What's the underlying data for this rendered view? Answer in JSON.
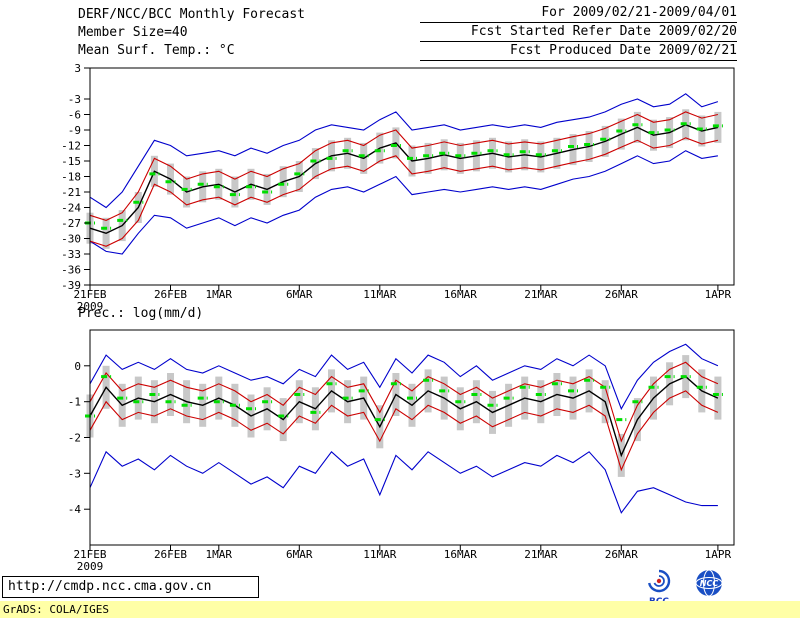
{
  "header": {
    "title": "DERF/NCC/BCC Monthly Forecast",
    "member_size": "Member Size=40",
    "for_range": "For 2009/02/21-2009/04/01",
    "fcst_started": "Fcst Started Refer Date 2009/02/20",
    "fcst_produced": "Fcst Produced Date 2009/02/21"
  },
  "labels": {
    "temp_panel": "Mean Surf. Temp.: °C",
    "prec_panel": "Prec.: log(mm/d)"
  },
  "footer": {
    "url": "http://cmdp.ncc.cma.gov.cn",
    "grads_credit": "GrADS: COLA/IGES",
    "bcc_logo": "BCC",
    "ncc_logo": "NCC"
  },
  "colors": {
    "ensemble_mean": "#000000",
    "spread_lines": "#cc0000",
    "extreme_lines": "#0000cc",
    "obs_dashes": "#00dd00",
    "spread_bars": "#c8c8c8",
    "stamp_bg": "#ffffa6"
  },
  "chart_data": [
    {
      "type": "line",
      "name": "surface-temperature-panel",
      "title": "Mean Surf. Temp.: °C",
      "ylabel": "°C",
      "ylim": [
        -39,
        3
      ],
      "yticks": [
        3,
        -3,
        -6,
        -9,
        -12,
        -15,
        -18,
        -21,
        -24,
        -27,
        -30,
        -33,
        -36,
        -39
      ],
      "n_days": 40,
      "year_label": "2009",
      "grid": false,
      "legend": false,
      "x_ticks": [
        {
          "day": 0,
          "label": "21FEB"
        },
        {
          "day": 5,
          "label": "26FEB"
        },
        {
          "day": 8,
          "label": "1MAR"
        },
        {
          "day": 13,
          "label": "6MAR"
        },
        {
          "day": 18,
          "label": "11MAR"
        },
        {
          "day": 23,
          "label": "16MAR"
        },
        {
          "day": 28,
          "label": "21MAR"
        },
        {
          "day": 33,
          "label": "26MAR"
        },
        {
          "day": 39,
          "label": "1APR"
        }
      ],
      "series": [
        {
          "name": "ensemble-max",
          "color": "#0000cc",
          "values": [
            -22,
            -24,
            -21,
            -16,
            -11,
            -12,
            -14,
            -13.5,
            -13,
            -14,
            -12.5,
            -13.5,
            -12,
            -11,
            -9,
            -8,
            -8.5,
            -9,
            -7,
            -5.5,
            -9,
            -8.5,
            -8,
            -9,
            -8.5,
            -8,
            -8.5,
            -8,
            -8.5,
            -7.5,
            -7,
            -6.5,
            -5.5,
            -4,
            -3,
            -4.5,
            -4,
            -2,
            -4.5,
            -3.5
          ]
        },
        {
          "name": "ensemble-min",
          "color": "#0000cc",
          "values": [
            -30.5,
            -32.5,
            -33,
            -29,
            -25.5,
            -26,
            -28,
            -27,
            -26,
            -27.5,
            -26,
            -27,
            -25.5,
            -24.5,
            -22,
            -20.5,
            -20,
            -21,
            -19.5,
            -18,
            -21.5,
            -21,
            -20.5,
            -21,
            -20.5,
            -20,
            -20.5,
            -20,
            -20.5,
            -19.5,
            -18.5,
            -18,
            -17,
            -15.5,
            -14,
            -15.5,
            -15,
            -13,
            -14.5,
            -14
          ]
        },
        {
          "name": "spread-upper",
          "color": "#cc0000",
          "values": [
            -25.5,
            -26.5,
            -25,
            -21,
            -14.5,
            -16,
            -18.5,
            -17.5,
            -17,
            -18.5,
            -17,
            -18,
            -16.5,
            -15.5,
            -13,
            -11.5,
            -11,
            -12,
            -10,
            -9,
            -12.5,
            -12,
            -11.3,
            -12,
            -11.5,
            -11,
            -11.7,
            -11.3,
            -11.7,
            -11,
            -10.3,
            -9.7,
            -8.7,
            -7.3,
            -6,
            -7.5,
            -7,
            -5.5,
            -6.7,
            -6
          ]
        },
        {
          "name": "spread-lower",
          "color": "#cc0000",
          "values": [
            -30.5,
            -31.5,
            -30,
            -26.5,
            -19.5,
            -21,
            -23.5,
            -22.5,
            -22,
            -23.5,
            -22,
            -23,
            -21.5,
            -20.5,
            -18,
            -16.5,
            -16,
            -17,
            -15,
            -14,
            -17.5,
            -17,
            -16.3,
            -17,
            -16.5,
            -16,
            -16.7,
            -16.3,
            -16.7,
            -16,
            -15.3,
            -14.7,
            -13.7,
            -12.3,
            -11,
            -12.5,
            -12,
            -10.5,
            -11.7,
            -11
          ]
        },
        {
          "name": "ensemble-mean",
          "color": "#000000",
          "values": [
            -28,
            -29,
            -27.5,
            -24,
            -17,
            -18.5,
            -21,
            -20,
            -19.5,
            -21,
            -19.5,
            -20.5,
            -19,
            -18,
            -15.5,
            -14,
            -13.5,
            -14.5,
            -12.5,
            -11.5,
            -15,
            -14.5,
            -13.8,
            -14.5,
            -14,
            -13.5,
            -14.2,
            -13.8,
            -14.2,
            -13.5,
            -12.8,
            -12.2,
            -11.2,
            -9.8,
            -8.5,
            -10,
            -9.5,
            -8,
            -9.2,
            -8.5
          ]
        }
      ],
      "spread_bars": {
        "color": "#c8c8c8",
        "top": [
          -25,
          -26,
          -24.5,
          -21,
          -14,
          -15.5,
          -18,
          -17,
          -16.5,
          -18,
          -16.5,
          -17.5,
          -16,
          -15,
          -12.5,
          -11,
          -10.5,
          -11.5,
          -9.5,
          -8.5,
          -12,
          -11.5,
          -10.8,
          -11.5,
          -11,
          -10.5,
          -11.2,
          -10.8,
          -11.2,
          -10.5,
          -9.8,
          -9.2,
          -8.2,
          -6.8,
          -5.5,
          -7,
          -6.5,
          -5,
          -6.2,
          -5.5
        ],
        "bottom": [
          -31,
          -32,
          -30.5,
          -27,
          -20,
          -21.5,
          -24,
          -23,
          -22.5,
          -24,
          -22.5,
          -23.5,
          -22,
          -21,
          -18.5,
          -17,
          -16.5,
          -17.5,
          -15.5,
          -14.5,
          -18,
          -17.5,
          -16.8,
          -17.5,
          -17,
          -16.5,
          -17.2,
          -16.8,
          -17.2,
          -16.5,
          -15.8,
          -15.2,
          -14.2,
          -12.8,
          -11.5,
          -13,
          -12.5,
          -11,
          -12.2,
          -11.5
        ]
      },
      "obs_dashes": {
        "name": "verification-dashes",
        "color": "#00dd00",
        "values": [
          -27,
          -28,
          -26.5,
          -23,
          -17.5,
          -19,
          -20.5,
          -19.5,
          -20,
          -21.5,
          -20,
          -21,
          -19.5,
          -17.5,
          -15,
          -14.5,
          -13,
          -14,
          -13,
          -12,
          -14.5,
          -14,
          -13.5,
          -14,
          -13.5,
          -13,
          -13.8,
          -13.2,
          -13.8,
          -13,
          -12.2,
          -11.8,
          -10.8,
          -9.2,
          -8,
          -9.5,
          -9,
          -7.8,
          -8.8,
          -8.2
        ]
      }
    },
    {
      "type": "line",
      "name": "precipitation-panel",
      "title": "Prec.: log(mm/d)",
      "ylabel": "log(mm/d)",
      "ylim": [
        -5,
        1
      ],
      "yticks": [
        0,
        -1,
        -2,
        -3,
        -4
      ],
      "n_days": 40,
      "year_label": "2009",
      "grid": false,
      "legend": false,
      "x_ticks": [
        {
          "day": 0,
          "label": "21FEB"
        },
        {
          "day": 5,
          "label": "26FEB"
        },
        {
          "day": 8,
          "label": "1MAR"
        },
        {
          "day": 13,
          "label": "6MAR"
        },
        {
          "day": 18,
          "label": "11MAR"
        },
        {
          "day": 23,
          "label": "16MAR"
        },
        {
          "day": 28,
          "label": "21MAR"
        },
        {
          "day": 33,
          "label": "26MAR"
        },
        {
          "day": 39,
          "label": "1APR"
        }
      ],
      "series": [
        {
          "name": "ensemble-max",
          "color": "#0000cc",
          "values": [
            -0.5,
            0.3,
            -0.1,
            0.1,
            -0.1,
            0.2,
            -0.1,
            -0.2,
            0.0,
            -0.2,
            -0.4,
            -0.3,
            -0.5,
            -0.1,
            -0.3,
            0.3,
            -0.1,
            0.1,
            -0.6,
            0.2,
            -0.2,
            0.3,
            0.1,
            -0.3,
            0.0,
            -0.4,
            -0.2,
            0.0,
            -0.1,
            0.2,
            0.0,
            0.3,
            0.0,
            -1.2,
            -0.4,
            0.1,
            0.4,
            0.6,
            0.2,
            0.0
          ]
        },
        {
          "name": "ensemble-min",
          "color": "#0000cc",
          "values": [
            -3.4,
            -2.4,
            -2.8,
            -2.6,
            -2.9,
            -2.5,
            -2.8,
            -3.0,
            -2.7,
            -3.0,
            -3.3,
            -3.1,
            -3.4,
            -2.8,
            -3.0,
            -2.4,
            -2.8,
            -2.6,
            -3.6,
            -2.5,
            -2.9,
            -2.4,
            -2.7,
            -3.0,
            -2.8,
            -3.1,
            -2.9,
            -2.7,
            -2.8,
            -2.5,
            -2.7,
            -2.4,
            -2.9,
            -4.1,
            -3.5,
            -3.4,
            -3.6,
            -3.8,
            -3.9,
            -3.9
          ]
        },
        {
          "name": "spread-upper",
          "color": "#cc0000",
          "values": [
            -1.0,
            -0.2,
            -0.7,
            -0.5,
            -0.6,
            -0.4,
            -0.6,
            -0.7,
            -0.5,
            -0.7,
            -1.0,
            -0.8,
            -1.1,
            -0.6,
            -0.8,
            -0.3,
            -0.6,
            -0.5,
            -1.3,
            -0.4,
            -0.7,
            -0.3,
            -0.5,
            -0.8,
            -0.6,
            -0.9,
            -0.7,
            -0.5,
            -0.6,
            -0.4,
            -0.5,
            -0.3,
            -0.6,
            -2.1,
            -1.1,
            -0.5,
            -0.1,
            0.1,
            -0.3,
            -0.5
          ]
        },
        {
          "name": "spread-lower",
          "color": "#cc0000",
          "values": [
            -1.8,
            -1.0,
            -1.5,
            -1.3,
            -1.4,
            -1.2,
            -1.4,
            -1.5,
            -1.3,
            -1.5,
            -1.8,
            -1.6,
            -1.9,
            -1.4,
            -1.6,
            -1.1,
            -1.4,
            -1.3,
            -2.1,
            -1.2,
            -1.5,
            -1.1,
            -1.3,
            -1.6,
            -1.4,
            -1.7,
            -1.5,
            -1.3,
            -1.4,
            -1.2,
            -1.3,
            -1.1,
            -1.4,
            -2.9,
            -1.9,
            -1.3,
            -0.9,
            -0.7,
            -1.1,
            -1.3
          ]
        },
        {
          "name": "ensemble-mean",
          "color": "#000000",
          "values": [
            -1.4,
            -0.6,
            -1.1,
            -0.9,
            -1.0,
            -0.8,
            -1.0,
            -1.1,
            -0.9,
            -1.1,
            -1.4,
            -1.2,
            -1.5,
            -1.0,
            -1.2,
            -0.7,
            -1.0,
            -0.9,
            -1.7,
            -0.8,
            -1.1,
            -0.7,
            -0.9,
            -1.2,
            -1.0,
            -1.3,
            -1.1,
            -0.9,
            -1.0,
            -0.8,
            -0.9,
            -0.7,
            -1.0,
            -2.5,
            -1.5,
            -0.9,
            -0.5,
            -0.3,
            -0.7,
            -0.9
          ]
        }
      ],
      "spread_bars": {
        "color": "#c8c8c8",
        "top": [
          -0.8,
          0.0,
          -0.5,
          -0.3,
          -0.4,
          -0.2,
          -0.4,
          -0.5,
          -0.3,
          -0.5,
          -0.8,
          -0.6,
          -0.9,
          -0.4,
          -0.6,
          -0.1,
          -0.4,
          -0.3,
          -1.1,
          -0.2,
          -0.5,
          -0.1,
          -0.3,
          -0.6,
          -0.4,
          -0.7,
          -0.5,
          -0.3,
          -0.4,
          -0.2,
          -0.3,
          -0.1,
          -0.4,
          -1.9,
          -0.9,
          -0.3,
          0.1,
          0.3,
          -0.1,
          -0.3
        ],
        "bottom": [
          -2.0,
          -1.2,
          -1.7,
          -1.5,
          -1.6,
          -1.4,
          -1.6,
          -1.7,
          -1.5,
          -1.7,
          -2.0,
          -1.8,
          -2.1,
          -1.6,
          -1.8,
          -1.3,
          -1.6,
          -1.5,
          -2.3,
          -1.4,
          -1.7,
          -1.3,
          -1.5,
          -1.8,
          -1.6,
          -1.9,
          -1.7,
          -1.5,
          -1.6,
          -1.4,
          -1.5,
          -1.3,
          -1.6,
          -3.1,
          -2.1,
          -1.5,
          -1.1,
          -0.9,
          -1.3,
          -1.5
        ]
      },
      "obs_dashes": {
        "name": "verification-dashes",
        "color": "#00dd00",
        "values": [
          -1.4,
          -0.3,
          -0.9,
          -1.0,
          -0.8,
          -1.0,
          -1.1,
          -0.9,
          -1.0,
          -1.1,
          -1.2,
          -1.0,
          -1.4,
          -0.8,
          -1.3,
          -0.5,
          -0.9,
          -0.7,
          -1.5,
          -0.5,
          -0.9,
          -0.4,
          -0.7,
          -1.0,
          -0.8,
          -1.1,
          -0.9,
          -0.6,
          -0.8,
          -0.5,
          -0.7,
          -0.4,
          -0.6,
          -1.5,
          -1.0,
          -0.6,
          -0.3,
          -0.3,
          -0.6,
          -0.8
        ]
      }
    }
  ]
}
